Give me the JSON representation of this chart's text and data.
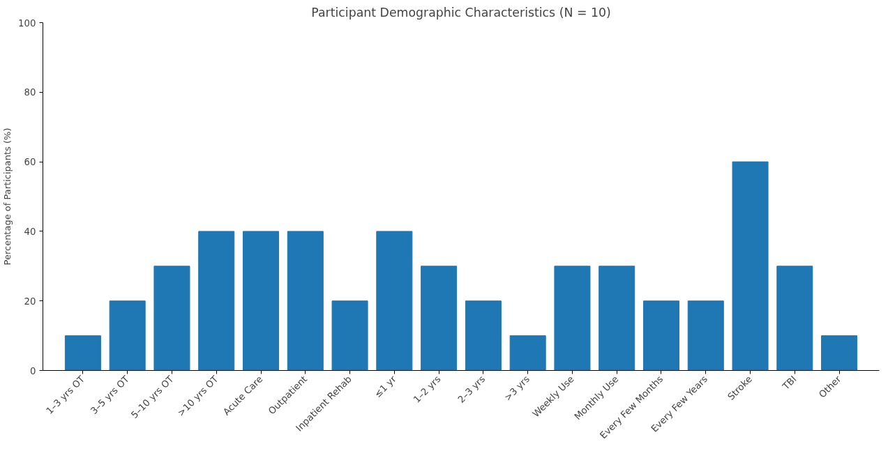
{
  "chart_data": {
    "type": "bar",
    "title": "Participant Demographic Characteristics (N = 10)",
    "ylabel": "Percentage of Participants (%)",
    "categories": [
      "1–3 yrs OT",
      "3–5 yrs OT",
      "5–10 yrs OT",
      ">10 yrs OT",
      "Acute Care",
      "Outpatient",
      "Inpatient Rehab",
      "≤1 yr",
      "1–2 yrs",
      "2–3 yrs",
      ">3 yrs",
      "Weekly Use",
      "Monthly Use",
      "Every Few Months",
      "Every Few Years",
      "Stroke",
      "TBI",
      "Other"
    ],
    "values": [
      10,
      20,
      30,
      40,
      40,
      40,
      20,
      40,
      30,
      20,
      10,
      30,
      30,
      20,
      20,
      60,
      30,
      10
    ],
    "color": "#1f77b4",
    "ylim": [
      0,
      100
    ],
    "yticks": [
      0,
      20,
      40,
      60,
      80,
      100
    ],
    "grid": false
  }
}
